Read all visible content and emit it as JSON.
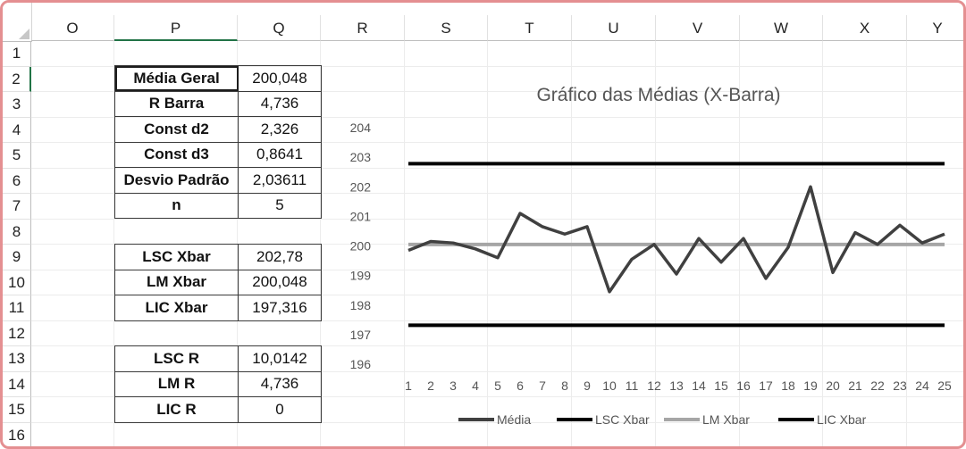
{
  "columns": [
    "O",
    "P",
    "Q",
    "R",
    "S",
    "T",
    "U",
    "V",
    "W",
    "X",
    "Y"
  ],
  "rows": [
    "1",
    "2",
    "3",
    "4",
    "5",
    "6",
    "7",
    "8",
    "9",
    "10",
    "11",
    "12",
    "13",
    "14",
    "15",
    "16"
  ],
  "stats_table": [
    {
      "label": "Média Geral",
      "value": "200,048"
    },
    {
      "label": "R Barra",
      "value": "4,736"
    },
    {
      "label": "Const d2",
      "value": "2,326"
    },
    {
      "label": "Const d3",
      "value": "0,8641"
    },
    {
      "label": "Desvio Padrão",
      "value": "2,03611"
    },
    {
      "label": "n",
      "value": "5"
    }
  ],
  "xbar_table": [
    {
      "label": "LSC Xbar",
      "value": "202,78"
    },
    {
      "label": "LM Xbar",
      "value": "200,048"
    },
    {
      "label": "LIC Xbar",
      "value": "197,316"
    }
  ],
  "r_table": [
    {
      "label": "LSC R",
      "value": "10,0142"
    },
    {
      "label": "LM R",
      "value": "4,736"
    },
    {
      "label": "LIC R",
      "value": "0"
    }
  ],
  "chart_data": {
    "type": "line",
    "title": "Gráfico das Médias (X-Barra)",
    "x": [
      1,
      2,
      3,
      4,
      5,
      6,
      7,
      8,
      9,
      10,
      11,
      12,
      13,
      14,
      15,
      16,
      17,
      18,
      19,
      20,
      21,
      22,
      23,
      24,
      25
    ],
    "ylim": [
      196,
      204
    ],
    "yticks": [
      196,
      197,
      198,
      199,
      200,
      201,
      202,
      203,
      204
    ],
    "series": [
      {
        "name": "Média",
        "color": "#404040",
        "values": [
          199.85,
          200.15,
          200.1,
          199.9,
          199.6,
          201.1,
          200.65,
          200.4,
          200.65,
          198.45,
          199.55,
          200.05,
          199.05,
          200.25,
          199.45,
          200.25,
          198.9,
          199.95,
          202.0,
          199.1,
          200.45,
          200.05,
          200.7,
          200.1,
          200.4
        ]
      },
      {
        "name": "LSC Xbar",
        "color": "#000000",
        "values": [
          202.78,
          202.78,
          202.78,
          202.78,
          202.78,
          202.78,
          202.78,
          202.78,
          202.78,
          202.78,
          202.78,
          202.78,
          202.78,
          202.78,
          202.78,
          202.78,
          202.78,
          202.78,
          202.78,
          202.78,
          202.78,
          202.78,
          202.78,
          202.78,
          202.78
        ]
      },
      {
        "name": "LM Xbar",
        "color": "#a6a6a6",
        "values": [
          200.048,
          200.048,
          200.048,
          200.048,
          200.048,
          200.048,
          200.048,
          200.048,
          200.048,
          200.048,
          200.048,
          200.048,
          200.048,
          200.048,
          200.048,
          200.048,
          200.048,
          200.048,
          200.048,
          200.048,
          200.048,
          200.048,
          200.048,
          200.048,
          200.048
        ]
      },
      {
        "name": "LIC Xbar",
        "color": "#000000",
        "values": [
          197.316,
          197.316,
          197.316,
          197.316,
          197.316,
          197.316,
          197.316,
          197.316,
          197.316,
          197.316,
          197.316,
          197.316,
          197.316,
          197.316,
          197.316,
          197.316,
          197.316,
          197.316,
          197.316,
          197.316,
          197.316,
          197.316,
          197.316,
          197.316,
          197.316
        ]
      }
    ],
    "legend": "bottom",
    "grid": false
  }
}
